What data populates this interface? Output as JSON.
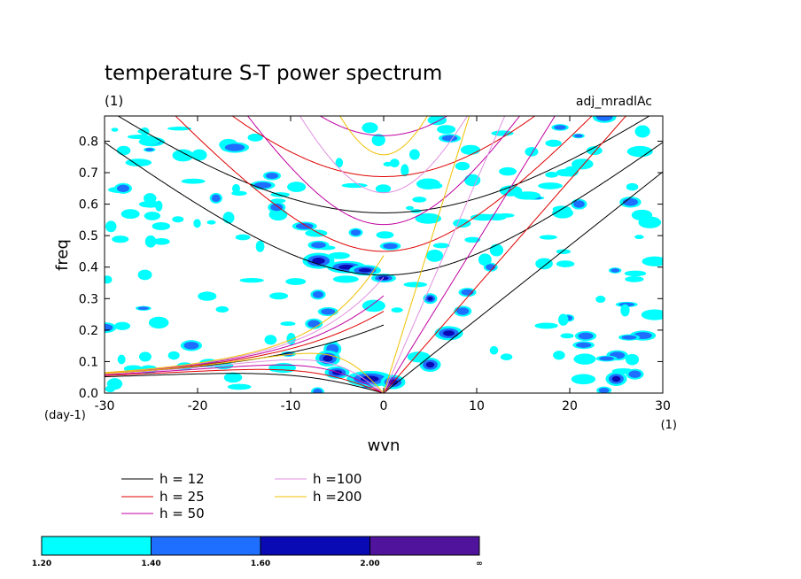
{
  "chart_data": {
    "type": "heatmap",
    "title": "temperature S-T power spectrum",
    "subtitle_left": "(1)",
    "subtitle_right": "adj_mradlAc",
    "xlabel": "wvn",
    "ylabel": "freq",
    "x_unit_label": "(1)",
    "y_unit_label": "(day-1)",
    "xlim": [
      -30,
      30
    ],
    "ylim": [
      0,
      0.88
    ],
    "xticks": [
      -30,
      -20,
      -10,
      0,
      10,
      20,
      30
    ],
    "yticks": [
      0.0,
      0.1,
      0.2,
      0.3,
      0.4,
      0.5,
      0.6,
      0.7,
      0.8
    ],
    "xtick_labels": [
      "-30",
      "-20",
      "-10",
      "0",
      "10",
      "20",
      "30"
    ],
    "ytick_labels": [
      "0.0",
      "0.1",
      "0.2",
      "0.3",
      "0.4",
      "0.5",
      "0.6",
      "0.7",
      "0.8"
    ],
    "dispersion_curves": [
      {
        "label": "h = 12",
        "h": 12,
        "color": "#000000"
      },
      {
        "label": "h = 25",
        "h": 25,
        "color": "#e00000"
      },
      {
        "label": "h = 50",
        "h": 50,
        "color": "#c000a0"
      },
      {
        "label": "h =100",
        "h": 100,
        "color": "#e090e0"
      },
      {
        "label": "h =200",
        "h": 200,
        "color": "#f0c000"
      }
    ],
    "colorbar": {
      "labels": [
        "1.20",
        "1.40",
        "1.60",
        "2.00",
        "∞"
      ],
      "colors": [
        "#00ffff",
        "#1e6eff",
        "#0a0ab4",
        "#50149c"
      ]
    }
  }
}
